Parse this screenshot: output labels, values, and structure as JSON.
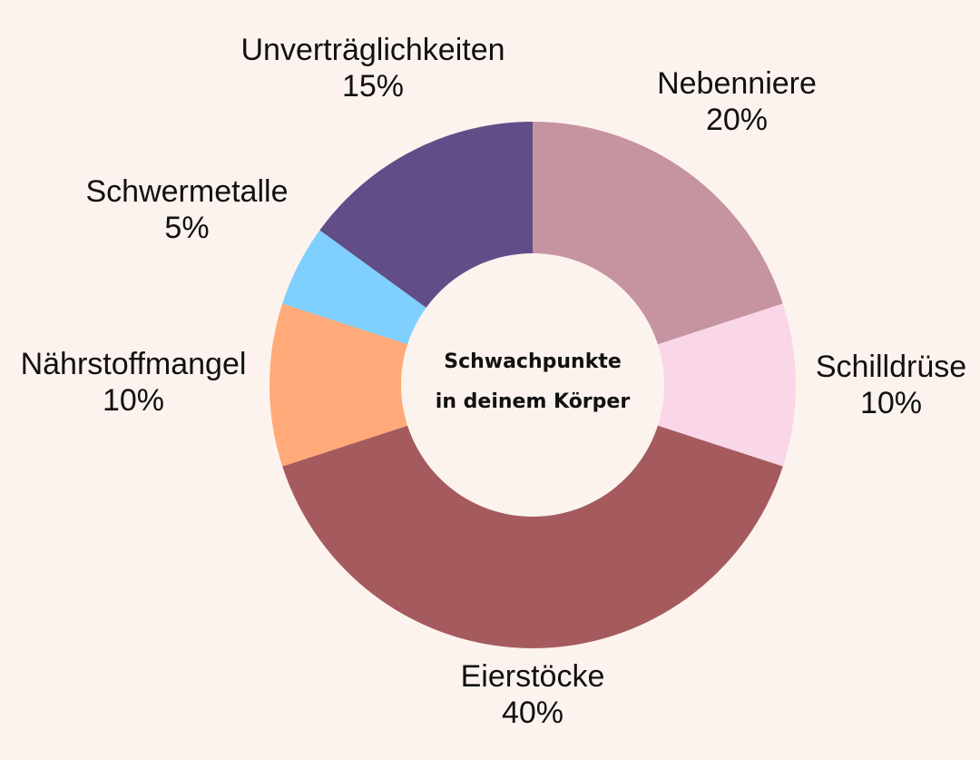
{
  "page": {
    "background": "#fdf3ee"
  },
  "chart_data": {
    "type": "pie",
    "title": "",
    "center_text": [
      "Schwachpunkte",
      "in deinem Körper"
    ],
    "unit": "%",
    "slices": [
      {
        "label": "Nebenniere",
        "value": 20,
        "value_text": "20%",
        "color": "#c594a0"
      },
      {
        "label": "Schilldrüse",
        "value": 10,
        "value_text": "10%",
        "color": "#f9d6e8"
      },
      {
        "label": "Eierstöcke",
        "value": 40,
        "value_text": "40%",
        "color": "#a55b5e"
      },
      {
        "label": "Nährstoffmangel",
        "value": 10,
        "value_text": "10%",
        "color": "#ffaa78"
      },
      {
        "label": "Schwermetalle",
        "value": 5,
        "value_text": "5%",
        "color": "#7fcfff"
      },
      {
        "label": "Unverträglichkeiten",
        "value": 15,
        "value_text": "15%",
        "color": "#614e88"
      }
    ],
    "start_angle": "12 o'clock",
    "direction": "clockwise",
    "legend": "none"
  }
}
